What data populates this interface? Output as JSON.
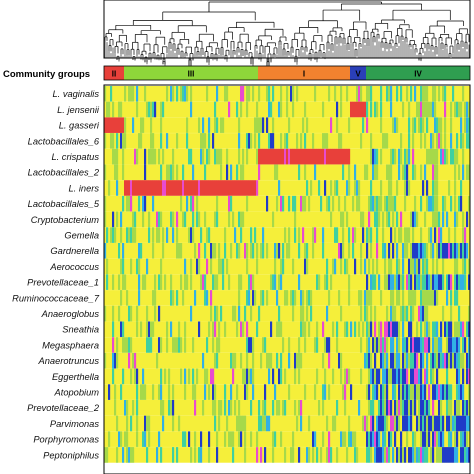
{
  "chart_data": {
    "type": "heatmap",
    "title": "",
    "row_header": "Community groups",
    "community_groups": [
      {
        "label": "II",
        "color": "#e8403a",
        "share": 0.055
      },
      {
        "label": "III",
        "color": "#8ed63a",
        "share": 0.366
      },
      {
        "label": "I",
        "color": "#f2822f",
        "share": 0.25
      },
      {
        "label": "V",
        "color": "#2a3fb8",
        "share": 0.045
      },
      {
        "label": "IV",
        "color": "#2f9e50",
        "share": 0.284
      }
    ],
    "rows": [
      {
        "label": "L. vaginalis",
        "italic": true
      },
      {
        "label": "L. jensenii",
        "italic": true
      },
      {
        "label": "L. gasseri",
        "italic": true
      },
      {
        "label": "Lactobacillales_6",
        "italic": true
      },
      {
        "label": "L. crispatus",
        "italic": true
      },
      {
        "label": "Lactobacillales_2",
        "italic": true
      },
      {
        "label": "L. iners",
        "italic": true
      },
      {
        "label": "Lactobacillales_5",
        "italic": true
      },
      {
        "label": "Cryptobacterium",
        "italic": true
      },
      {
        "label": "Gemella",
        "italic": true
      },
      {
        "label": "Gardnerella",
        "italic": true
      },
      {
        "label": "Aerococcus",
        "italic": true
      },
      {
        "label": "Prevotellaceae_1",
        "italic": true
      },
      {
        "label": "Ruminococcaceae_7",
        "italic": true
      },
      {
        "label": "Anaeroglobus",
        "italic": true
      },
      {
        "label": "Sneathia",
        "italic": true
      },
      {
        "label": "Megasphaera",
        "italic": true
      },
      {
        "label": "Anaerotruncus",
        "italic": true
      },
      {
        "label": "Eggerthella",
        "italic": true
      },
      {
        "label": "Atopobium",
        "italic": true
      },
      {
        "label": "Prevotellaceae_2",
        "italic": true
      },
      {
        "label": "Parvimonas",
        "italic": true
      },
      {
        "label": "Porphyromonas",
        "italic": true
      },
      {
        "label": "Peptoniphilus",
        "italic": true
      }
    ],
    "dominant_blocks": [
      {
        "row": "L. gasseri",
        "group": "II",
        "color": "#e8403a"
      },
      {
        "row": "L. crispatus",
        "group": "I",
        "color": "#e8403a"
      },
      {
        "row": "L. iners",
        "group": "III",
        "color": "#e8403a"
      },
      {
        "row": "L. jensenii",
        "group": "V",
        "color": "#e8403a"
      }
    ],
    "colors": {
      "background": "#f5ef3a",
      "low": "#a6d94a",
      "mid_low": "#3fd0a0",
      "mid": "#31b0e6",
      "high": "#1f3cc8",
      "higher": "#e84bd0",
      "highest": "#e8403a"
    },
    "dendrogram": "top",
    "legend": "none"
  }
}
